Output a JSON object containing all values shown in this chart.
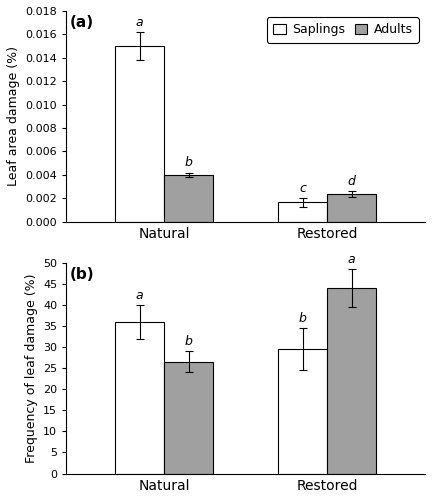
{
  "panel_a": {
    "label": "(a)",
    "ylabel": "Leaf area damage (%)",
    "ylim": [
      0,
      0.018
    ],
    "yticks": [
      0,
      0.002,
      0.004,
      0.006,
      0.008,
      0.01,
      0.012,
      0.014,
      0.016,
      0.018
    ],
    "groups": [
      "Natural",
      "Restored"
    ],
    "saplings_values": [
      0.015,
      0.00165
    ],
    "adults_values": [
      0.004,
      0.00235
    ],
    "saplings_errors": [
      0.0012,
      0.0004
    ],
    "adults_errors": [
      0.0002,
      0.00025
    ],
    "letters_saplings": [
      "a",
      "c"
    ],
    "letters_adults": [
      "b",
      "d"
    ],
    "bar_width": 0.3,
    "sapling_color": "#ffffff",
    "adult_color": "#a0a0a0"
  },
  "panel_b": {
    "label": "(b)",
    "ylabel": "Frequency of leaf damage (%)",
    "ylim": [
      0,
      50
    ],
    "yticks": [
      0,
      5,
      10,
      15,
      20,
      25,
      30,
      35,
      40,
      45,
      50
    ],
    "groups": [
      "Natural",
      "Restored"
    ],
    "saplings_values": [
      36.0,
      29.5
    ],
    "adults_values": [
      26.5,
      44.0
    ],
    "saplings_errors": [
      4.0,
      5.0
    ],
    "adults_errors": [
      2.5,
      4.5
    ],
    "letters_saplings": [
      "a",
      "b"
    ],
    "letters_adults": [
      "b",
      "a"
    ],
    "bar_width": 0.3,
    "sapling_color": "#ffffff",
    "adult_color": "#a0a0a0"
  },
  "legend_labels": [
    "Saplings",
    "Adults"
  ],
  "sapling_color": "#ffffff",
  "adult_color": "#a0a0a0",
  "edge_color": "#000000",
  "group_positions": [
    1.0,
    2.0
  ],
  "figsize": [
    4.32,
    5.0
  ],
  "dpi": 100
}
